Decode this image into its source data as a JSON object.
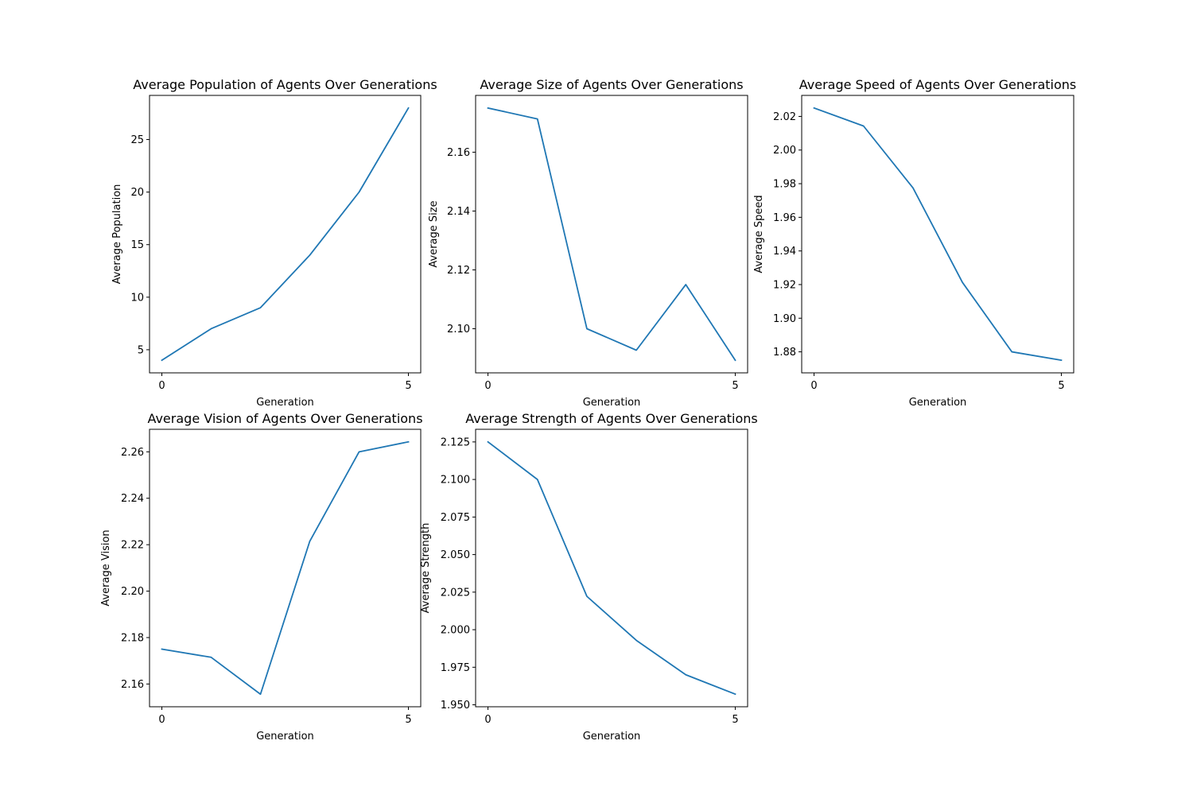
{
  "chart_data": [
    {
      "type": "line",
      "title": "Average Population of Agents Over Generations",
      "xlabel": "Generation",
      "ylabel": "Average Population",
      "x": [
        0,
        1,
        2,
        3,
        4,
        5
      ],
      "series": [
        {
          "values": [
            4,
            7,
            9,
            14,
            20,
            28
          ]
        }
      ],
      "xticks": [
        0,
        5
      ],
      "yticks": [
        5,
        10,
        15,
        20,
        25
      ],
      "ytick_labels": [
        "5",
        "10",
        "15",
        "20",
        "25"
      ],
      "xlim": [
        -0.25,
        5.25
      ],
      "ylim": [
        2.8,
        29.2
      ],
      "grid": false
    },
    {
      "type": "line",
      "title": "Average Size of Agents Over Generations",
      "xlabel": "Generation",
      "ylabel": "Average Size",
      "x": [
        0,
        1,
        2,
        3,
        4,
        5
      ],
      "series": [
        {
          "values": [
            2.175,
            2.1713,
            2.1,
            2.0927,
            2.115,
            2.0893
          ]
        }
      ],
      "xticks": [
        0,
        5
      ],
      "yticks": [
        2.1,
        2.12,
        2.14,
        2.16
      ],
      "ytick_labels": [
        "2.10",
        "2.12",
        "2.14",
        "2.16"
      ],
      "xlim": [
        -0.25,
        5.25
      ],
      "ylim": [
        2.085,
        2.1793
      ],
      "grid": false
    },
    {
      "type": "line",
      "title": "Average Speed of Agents Over Generations",
      "xlabel": "Generation",
      "ylabel": "Average Speed",
      "x": [
        0,
        1,
        2,
        3,
        4,
        5
      ],
      "series": [
        {
          "values": [
            2.025,
            2.0143,
            1.9775,
            1.9213,
            1.88,
            1.875
          ]
        }
      ],
      "xticks": [
        0,
        5
      ],
      "yticks": [
        1.88,
        1.9,
        1.92,
        1.94,
        1.96,
        1.98,
        2.0,
        2.02
      ],
      "ytick_labels": [
        "1.88",
        "1.90",
        "1.92",
        "1.94",
        "1.96",
        "1.98",
        "2.00",
        "2.02"
      ],
      "xlim": [
        -0.25,
        5.25
      ],
      "ylim": [
        1.8675,
        2.0325
      ],
      "grid": false
    },
    {
      "type": "line",
      "title": "Average Vision of Agents Over Generations",
      "xlabel": "Generation",
      "ylabel": "Average Vision",
      "x": [
        0,
        1,
        2,
        3,
        4,
        5
      ],
      "series": [
        {
          "values": [
            2.175,
            2.1715,
            2.1556,
            2.2215,
            2.26,
            2.2643
          ]
        }
      ],
      "xticks": [
        0,
        5
      ],
      "yticks": [
        2.16,
        2.18,
        2.2,
        2.22,
        2.24,
        2.26
      ],
      "ytick_labels": [
        "2.16",
        "2.18",
        "2.20",
        "2.22",
        "2.24",
        "2.26"
      ],
      "xlim": [
        -0.25,
        5.25
      ],
      "ylim": [
        2.1502,
        2.2697
      ],
      "grid": false
    },
    {
      "type": "line",
      "title": "Average Strength of Agents Over Generations",
      "xlabel": "Generation",
      "ylabel": "Average Strength",
      "x": [
        0,
        1,
        2,
        3,
        4,
        5
      ],
      "series": [
        {
          "values": [
            2.125,
            2.1,
            2.0222,
            1.9929,
            1.97,
            1.9571
          ]
        }
      ],
      "xticks": [
        0,
        5
      ],
      "yticks": [
        1.95,
        1.975,
        2.0,
        2.025,
        2.05,
        2.075,
        2.1,
        2.125
      ],
      "ytick_labels": [
        "1.950",
        "1.975",
        "2.000",
        "2.025",
        "2.050",
        "2.075",
        "2.100",
        "2.125"
      ],
      "xlim": [
        -0.25,
        5.25
      ],
      "ylim": [
        1.9487,
        2.1334
      ],
      "grid": false
    }
  ],
  "colors": {
    "line": "#1f77b4",
    "axes": "#000000",
    "background": "#ffffff"
  }
}
